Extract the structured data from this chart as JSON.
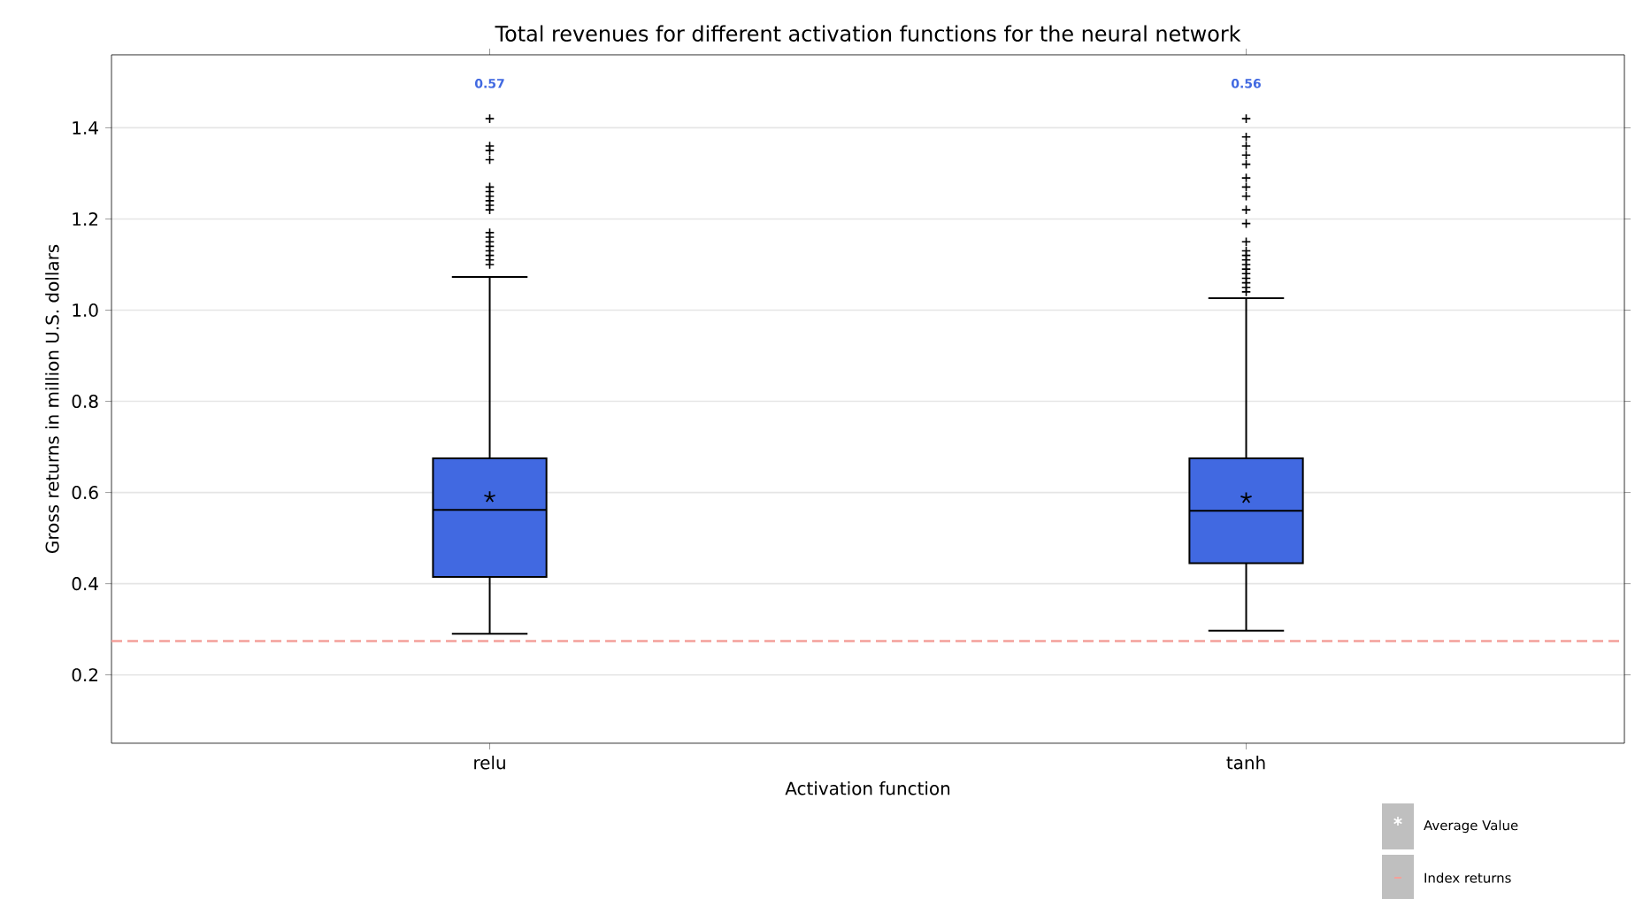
{
  "chart_data": {
    "type": "box",
    "title": "Total revenues for different activation functions for the neural network",
    "xlabel": "Activation function",
    "ylabel": "Gross returns in million U.S. dollars",
    "categories": [
      "relu",
      "tanh"
    ],
    "series": [
      {
        "color": "#4169e1",
        "value_labels": [
          "0.57",
          "0.56"
        ],
        "boxes": [
          {
            "low": 0.29,
            "q1": 0.415,
            "median": 0.562,
            "q3": 0.675,
            "high": 1.073,
            "mean": 0.59,
            "outliers": [
              1.1,
              1.11,
              1.12,
              1.13,
              1.14,
              1.15,
              1.16,
              1.17,
              1.22,
              1.23,
              1.24,
              1.25,
              1.26,
              1.27,
              1.33,
              1.35,
              1.36,
              1.42
            ]
          },
          {
            "low": 0.297,
            "q1": 0.445,
            "median": 0.56,
            "q3": 0.675,
            "high": 1.026,
            "mean": 0.588,
            "outliers": [
              1.04,
              1.05,
              1.06,
              1.07,
              1.08,
              1.09,
              1.1,
              1.11,
              1.12,
              1.13,
              1.15,
              1.19,
              1.22,
              1.25,
              1.27,
              1.29,
              1.32,
              1.34,
              1.36,
              1.38,
              1.42
            ]
          }
        ]
      }
    ],
    "annotations": [
      "Average Value"
    ],
    "ref_lines": [
      {
        "axis": "y",
        "value": 0.274,
        "label": "Index returns",
        "color": "#f4a09a",
        "line_style": "dashed"
      }
    ],
    "ylim": [
      0.05,
      1.56
    ],
    "yticks": [
      0.2,
      0.4,
      0.6,
      0.8,
      {
        "value": 1.0,
        "label": "1.0"
      },
      1.2,
      1.4
    ],
    "grid": "y",
    "marker": "star",
    "legend": "bottom right"
  }
}
